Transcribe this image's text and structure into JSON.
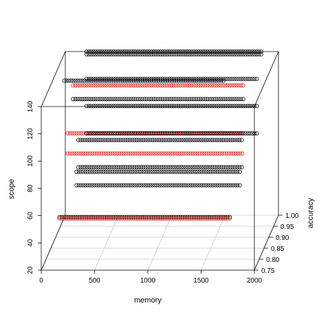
{
  "chart_data": {
    "type": "scatter",
    "title": "",
    "xlabel": "memory",
    "ylabel": "scope",
    "zlabel": "accuracy",
    "xlim": [
      0,
      2000
    ],
    "ylim": [
      0.75,
      1.0
    ],
    "zlim": [
      20,
      140
    ],
    "x_ticks": [
      0,
      500,
      1000,
      1500,
      2000
    ],
    "y_ticks": [
      0.75,
      0.8,
      0.85,
      0.9,
      0.95,
      1.0
    ],
    "y_tick_labels": [
      "0.75",
      "0.80",
      "0.85",
      "0.90",
      "0.95",
      "1.00"
    ],
    "z_ticks": [
      20,
      40,
      60,
      80,
      100,
      120,
      140
    ],
    "colors": {
      "black": "#000000",
      "red": "#e0201c",
      "box": "#000000",
      "grid": "#c8c8c8"
    },
    "series": [
      {
        "color": "black",
        "accuracy": 1.0,
        "scope": 140,
        "memory_from": 200,
        "memory_to": 1850
      },
      {
        "color": "black",
        "accuracy": 1.0,
        "scope": 138,
        "memory_from": 200,
        "memory_to": 1850
      },
      {
        "color": "black",
        "accuracy": 0.88,
        "scope": 138,
        "memory_from": 100,
        "memory_to": 1600
      },
      {
        "color": "black",
        "accuracy": 1.0,
        "scope": 120,
        "memory_from": 200,
        "memory_to": 1800
      },
      {
        "color": "red",
        "accuracy": 0.97,
        "scope": 120,
        "memory_from": 100,
        "memory_to": 1700
      },
      {
        "color": "black",
        "accuracy": 0.97,
        "scope": 110,
        "memory_from": 100,
        "memory_to": 1700
      },
      {
        "color": "black",
        "accuracy": 1.0,
        "scope": 100,
        "memory_from": 200,
        "memory_to": 1800
      },
      {
        "color": "red",
        "accuracy": 0.97,
        "scope": 85,
        "memory_from": 50,
        "memory_to": 1700
      },
      {
        "color": "black",
        "accuracy": 0.97,
        "scope": 80,
        "memory_from": 150,
        "memory_to": 1700
      },
      {
        "color": "black",
        "accuracy": 1.0,
        "scope": 80,
        "memory_from": 200,
        "memory_to": 1800
      },
      {
        "color": "red",
        "accuracy": 0.97,
        "scope": 70,
        "memory_from": 50,
        "memory_to": 1700
      },
      {
        "color": "black",
        "accuracy": 0.97,
        "scope": 60,
        "memory_from": 150,
        "memory_to": 1700
      },
      {
        "color": "black",
        "accuracy": 0.95,
        "scope": 60,
        "memory_from": 150,
        "memory_to": 1700
      },
      {
        "color": "black",
        "accuracy": 0.95,
        "scope": 50,
        "memory_from": 150,
        "memory_to": 1700
      },
      {
        "color": "black",
        "accuracy": 0.83,
        "scope": 46,
        "memory_from": 100,
        "memory_to": 1700
      },
      {
        "color": "red",
        "accuracy": 0.83,
        "scope": 45,
        "memory_from": 100,
        "memory_to": 1700
      }
    ]
  }
}
